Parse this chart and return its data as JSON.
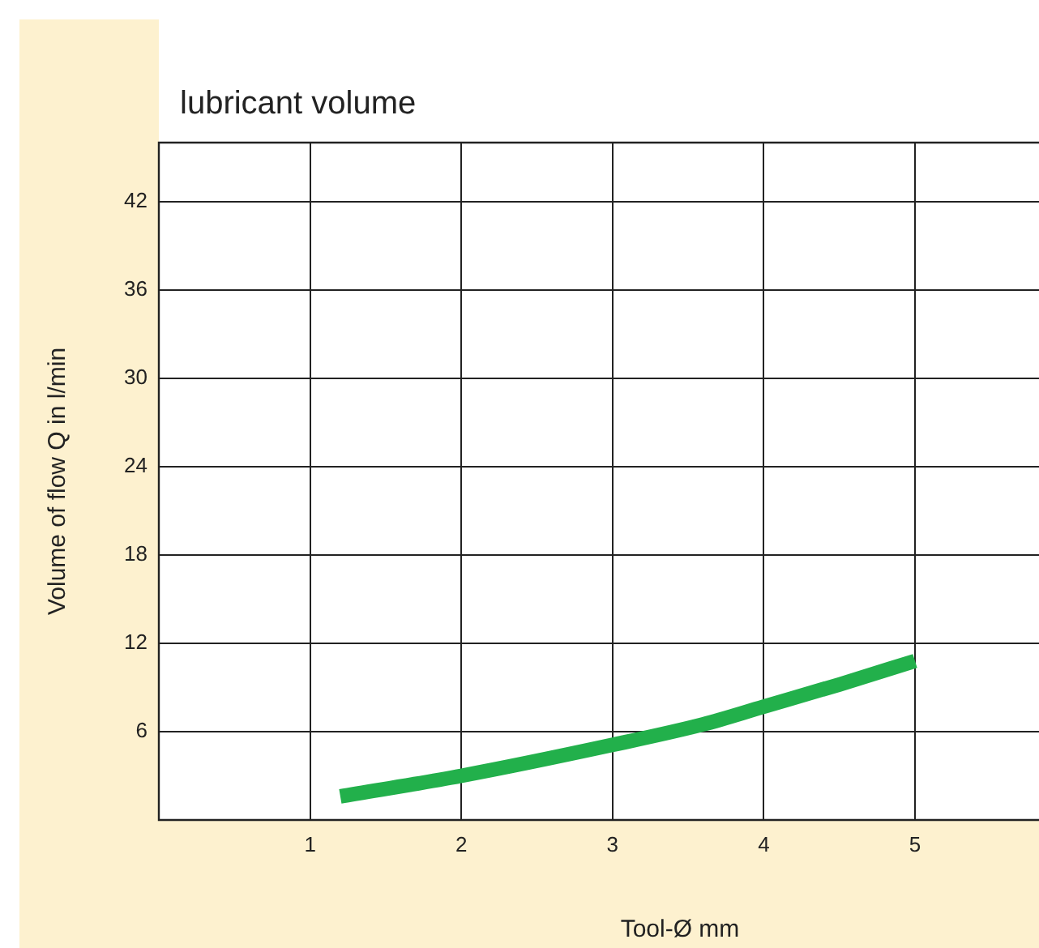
{
  "chart_data": {
    "type": "line",
    "title": "lubricant volume",
    "xlabel": "Tool-Ø mm",
    "ylabel": "Volume of flow Q in l/min",
    "x": [
      1.2,
      2,
      3,
      3.6,
      4,
      4.5,
      5
    ],
    "series": [
      {
        "color": "#22b04b",
        "values": [
          1.6,
          3.0,
          5.1,
          6.5,
          7.7,
          9.2,
          10.8
        ]
      }
    ],
    "xlim": [
      0,
      5.82
    ],
    "xticks": [
      1,
      2,
      3,
      4,
      5
    ],
    "ylim": [
      0,
      46
    ],
    "yticks": [
      6,
      12,
      18,
      24,
      30,
      36,
      42
    ],
    "grid": true,
    "legend": false,
    "marker": "none",
    "line_style": "solid"
  }
}
